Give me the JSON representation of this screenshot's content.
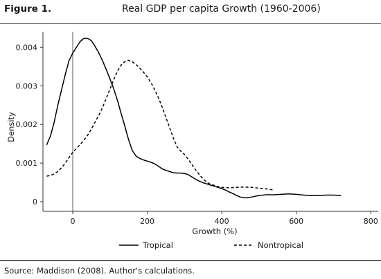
{
  "figure": {
    "label": "Figure 1.",
    "title": "Real GDP per capita Growth (1960-2006)",
    "source": "Source: Maddison (2008). Author's calculations."
  },
  "chart_data": {
    "type": "line",
    "xlabel": "Growth (%)",
    "ylabel": "Density",
    "xlim": [
      -80,
      820
    ],
    "ylim": [
      -0.00025,
      0.0044
    ],
    "xticks": [
      0,
      200,
      400,
      600,
      800
    ],
    "yticks": [
      0,
      0.001,
      0.002,
      0.003,
      0.004
    ],
    "xtick_labels": [
      "0",
      "200",
      "400",
      "600",
      "800"
    ],
    "ytick_labels": [
      "0",
      "0.001",
      "0.002",
      "0.003",
      "0.004"
    ],
    "vline_x": 0,
    "grid": false,
    "legend_position": "bottom",
    "series": [
      {
        "name": "Tropical",
        "style": "solid",
        "color": "#000000",
        "x": [
          -70,
          -60,
          -50,
          -40,
          -30,
          -20,
          -10,
          0,
          10,
          20,
          30,
          40,
          50,
          60,
          70,
          80,
          90,
          100,
          110,
          120,
          130,
          140,
          150,
          160,
          170,
          180,
          190,
          200,
          210,
          220,
          230,
          240,
          250,
          260,
          270,
          280,
          290,
          300,
          310,
          320,
          330,
          340,
          350,
          360,
          370,
          380,
          390,
          400,
          410,
          420,
          430,
          440,
          450,
          460,
          470,
          480,
          490,
          500,
          520,
          540,
          560,
          580,
          600,
          620,
          640,
          660,
          680,
          700,
          720
        ],
        "y": [
          0.00147,
          0.0017,
          0.00205,
          0.0025,
          0.0029,
          0.0033,
          0.00365,
          0.00385,
          0.004,
          0.00415,
          0.00423,
          0.00423,
          0.00417,
          0.00402,
          0.00385,
          0.00365,
          0.00342,
          0.00318,
          0.00292,
          0.00262,
          0.00228,
          0.00195,
          0.0016,
          0.00132,
          0.00118,
          0.00112,
          0.00108,
          0.00105,
          0.00102,
          0.00098,
          0.00092,
          0.00085,
          0.00081,
          0.00078,
          0.00075,
          0.00074,
          0.00074,
          0.00073,
          0.0007,
          0.00064,
          0.00058,
          0.00053,
          0.00049,
          0.00046,
          0.00043,
          0.0004,
          0.00037,
          0.00034,
          0.0003,
          0.00025,
          0.00021,
          0.00016,
          0.00012,
          0.0001,
          0.0001,
          0.00012,
          0.00014,
          0.00016,
          0.00018,
          0.00018,
          0.00019,
          0.0002,
          0.00019,
          0.00017,
          0.00016,
          0.00016,
          0.00017,
          0.00017,
          0.00016
        ]
      },
      {
        "name": "Nontropical",
        "style": "dashed",
        "color": "#000000",
        "x": [
          -70,
          -60,
          -50,
          -40,
          -30,
          -20,
          -10,
          0,
          10,
          20,
          30,
          40,
          50,
          60,
          70,
          80,
          90,
          100,
          110,
          120,
          130,
          140,
          150,
          160,
          170,
          180,
          190,
          200,
          210,
          220,
          230,
          240,
          250,
          260,
          270,
          280,
          290,
          300,
          310,
          320,
          330,
          340,
          350,
          360,
          370,
          380,
          390,
          400,
          420,
          440,
          460,
          480,
          500,
          520,
          540
        ],
        "y": [
          0.00066,
          0.00068,
          0.00072,
          0.00078,
          0.00088,
          0.001,
          0.00114,
          0.00128,
          0.00138,
          0.00148,
          0.0016,
          0.00172,
          0.00188,
          0.00206,
          0.00224,
          0.00244,
          0.00268,
          0.00292,
          0.00316,
          0.00338,
          0.00354,
          0.00363,
          0.00366,
          0.00362,
          0.00355,
          0.00346,
          0.00335,
          0.00323,
          0.00308,
          0.0029,
          0.00269,
          0.00245,
          0.00218,
          0.00192,
          0.00165,
          0.00142,
          0.00131,
          0.00122,
          0.0011,
          0.00096,
          0.00082,
          0.0007,
          0.00059,
          0.0005,
          0.00045,
          0.00042,
          0.00039,
          0.00037,
          0.00036,
          0.00037,
          0.00038,
          0.00037,
          0.00035,
          0.00033,
          0.0003
        ]
      }
    ]
  }
}
